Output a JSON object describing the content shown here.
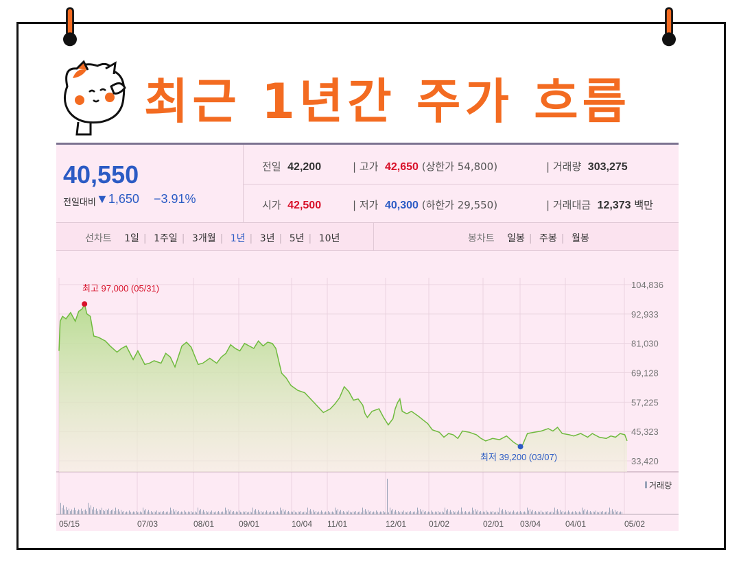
{
  "title": "최근 1년간 주가 흐름",
  "quote": {
    "price": "40,550",
    "change_label": "전일대비",
    "change_value": "▼1,650",
    "change_pct": "−3.91%",
    "prev_close_label": "전일",
    "prev_close": "42,200",
    "high_label": "고가",
    "high": "42,650",
    "upper_limit": "(상한가 54,800)",
    "volume_label": "거래량",
    "volume": "303,275",
    "open_label": "시가",
    "open": "42,500",
    "low_label": "저가",
    "low": "40,300",
    "lower_limit": "(하한가 29,550)",
    "amount_label": "거래대금",
    "amount": "12,373",
    "amount_unit": "백만"
  },
  "tabs": {
    "line_label": "선차트",
    "periods": [
      "1일",
      "1주일",
      "3개월",
      "1년",
      "3년",
      "5년",
      "10년"
    ],
    "active": "1년",
    "candle_label": "봉차트",
    "candles": [
      "일봉",
      "주봉",
      "월봉"
    ]
  },
  "colors": {
    "accent": "#f36b21",
    "line": "#6fba3e",
    "down": "#2b5bc4",
    "up": "#d8112a"
  },
  "chart_data": {
    "type": "area",
    "x_ticks": [
      "05/15",
      "07/03",
      "08/01",
      "09/01",
      "10/04",
      "11/01",
      "12/01",
      "01/02",
      "02/01",
      "03/04",
      "04/01",
      "05/02"
    ],
    "y_ticks": [
      "104,836",
      "92,933",
      "81,030",
      "69,128",
      "57,225",
      "45,323",
      "33,420"
    ],
    "ylim": [
      33420,
      104836
    ],
    "volume_label": "거래량",
    "max_annotation": "최고 97,000 (05/31)",
    "min_annotation": "최저 39,200 (03/07)",
    "max_point": {
      "x": 0.11,
      "y": 97000
    },
    "min_point": {
      "x": 0.836,
      "y": 39200
    },
    "x_tick_positions": [
      0,
      0.146,
      0.244,
      0.36,
      0.45,
      0.525,
      0.629,
      0.719,
      0.815,
      0.903,
      0.985,
      1.1
    ],
    "series": [
      {
        "values": [
          [
            0,
            78000
          ],
          [
            0.005,
            90000
          ],
          [
            0.015,
            92000
          ],
          [
            0.03,
            91000
          ],
          [
            0.05,
            93500
          ],
          [
            0.07,
            90000
          ],
          [
            0.085,
            94000
          ],
          [
            0.1,
            95000
          ],
          [
            0.11,
            97000
          ],
          [
            0.12,
            93000
          ],
          [
            0.135,
            92000
          ],
          [
            0.15,
            84000
          ],
          [
            0.17,
            83500
          ],
          [
            0.2,
            82000
          ],
          [
            0.22,
            80000
          ],
          [
            0.25,
            77500
          ],
          [
            0.27,
            79000
          ],
          [
            0.29,
            80000
          ],
          [
            0.32,
            74500
          ],
          [
            0.34,
            78000
          ],
          [
            0.37,
            72500
          ],
          [
            0.39,
            73000
          ],
          [
            0.41,
            74000
          ],
          [
            0.44,
            73000
          ],
          [
            0.46,
            77000
          ],
          [
            0.48,
            75500
          ],
          [
            0.5,
            71500
          ],
          [
            0.53,
            80000
          ],
          [
            0.55,
            81500
          ],
          [
            0.57,
            79500
          ],
          [
            0.6,
            72500
          ],
          [
            0.62,
            73000
          ],
          [
            0.65,
            75000
          ],
          [
            0.68,
            73000
          ],
          [
            0.7,
            75500
          ],
          [
            0.72,
            77000
          ],
          [
            0.74,
            80500
          ],
          [
            0.76,
            79000
          ],
          [
            0.78,
            78000
          ],
          [
            0.8,
            81000
          ],
          [
            0.82,
            80000
          ],
          [
            0.84,
            79000
          ],
          [
            0.86,
            82000
          ],
          [
            0.88,
            80000
          ],
          [
            0.9,
            81500
          ],
          [
            0.92,
            81000
          ],
          [
            0.935,
            79000
          ],
          [
            0.96,
            69000
          ],
          [
            0.98,
            67000
          ],
          [
            1.0,
            64000
          ],
          [
            1.03,
            62000
          ],
          [
            1.06,
            61000
          ],
          [
            1.09,
            58000
          ],
          [
            1.12,
            55000
          ],
          [
            1.14,
            53000
          ],
          [
            1.17,
            54500
          ],
          [
            1.19,
            56500
          ],
          [
            1.21,
            59000
          ],
          [
            1.23,
            63500
          ],
          [
            1.25,
            61500
          ],
          [
            1.27,
            58000
          ],
          [
            1.29,
            58500
          ],
          [
            1.31,
            56000
          ],
          [
            1.32,
            52500
          ],
          [
            1.33,
            51000
          ],
          [
            1.35,
            53500
          ],
          [
            1.38,
            54500
          ],
          [
            1.4,
            51000
          ],
          [
            1.42,
            48000
          ],
          [
            1.44,
            50500
          ],
          [
            1.45,
            54500
          ],
          [
            1.46,
            57000
          ],
          [
            1.47,
            58500
          ],
          [
            1.48,
            53500
          ],
          [
            1.5,
            52500
          ],
          [
            1.52,
            53500
          ],
          [
            1.55,
            51500
          ],
          [
            1.57,
            50000
          ],
          [
            1.59,
            48500
          ],
          [
            1.61,
            46000
          ],
          [
            1.64,
            45000
          ],
          [
            1.66,
            43000
          ],
          [
            1.68,
            44500
          ],
          [
            1.7,
            44000
          ],
          [
            1.72,
            42500
          ],
          [
            1.74,
            45500
          ],
          [
            1.77,
            45000
          ],
          [
            1.8,
            44000
          ],
          [
            1.82,
            42500
          ],
          [
            1.84,
            41500
          ],
          [
            1.87,
            42500
          ],
          [
            1.9,
            42000
          ],
          [
            1.93,
            43500
          ],
          [
            1.96,
            41000
          ],
          [
            1.99,
            39200
          ],
          [
            2.0,
            40000
          ],
          [
            2.02,
            44500
          ],
          [
            2.05,
            45000
          ],
          [
            2.08,
            45500
          ],
          [
            2.11,
            46500
          ],
          [
            2.13,
            45500
          ],
          [
            2.15,
            47000
          ],
          [
            2.17,
            44500
          ],
          [
            2.2,
            44000
          ],
          [
            2.22,
            43500
          ],
          [
            2.25,
            44500
          ],
          [
            2.28,
            43000
          ],
          [
            2.3,
            44500
          ],
          [
            2.33,
            43000
          ],
          [
            2.36,
            42500
          ],
          [
            2.38,
            43500
          ],
          [
            2.4,
            43000
          ],
          [
            2.42,
            44500
          ],
          [
            2.44,
            44000
          ],
          [
            2.45,
            41500
          ]
        ]
      }
    ]
  }
}
